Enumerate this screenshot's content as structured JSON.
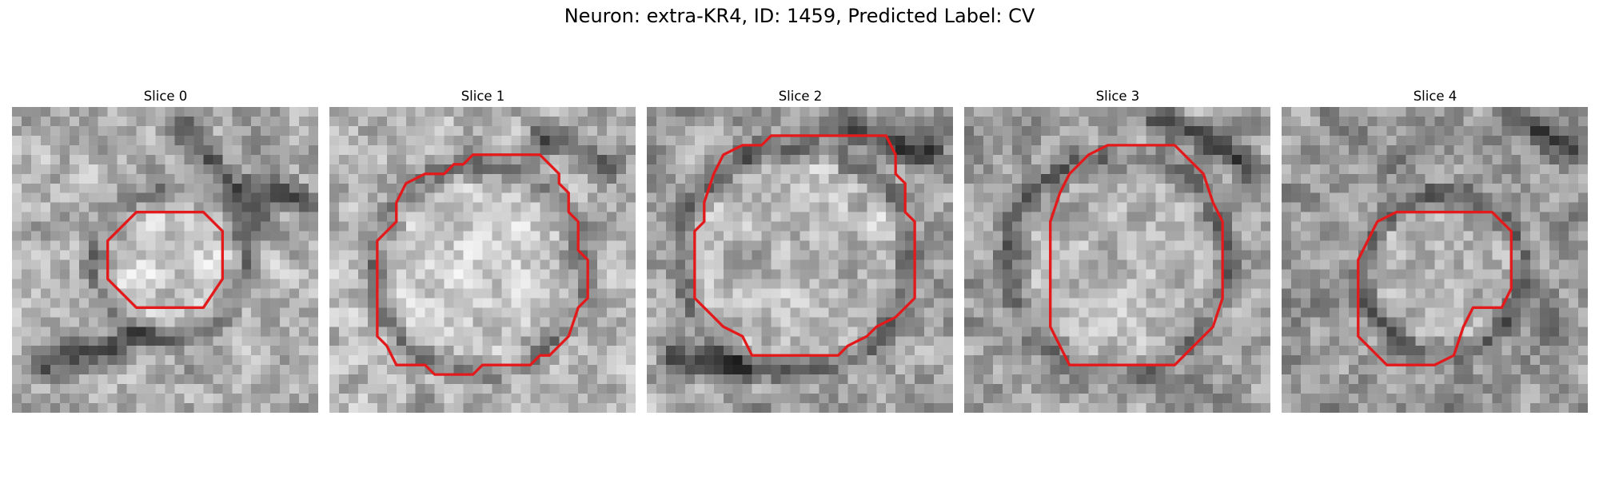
{
  "figure": {
    "title": "Neuron: extra-KR4, ID: 1459, Predicted Label: CV"
  },
  "colors": {
    "contour": "#e31a1c",
    "background": "#ffffff"
  },
  "panels": [
    {
      "title": "Slice 0"
    },
    {
      "title": "Slice 1"
    },
    {
      "title": "Slice 2"
    },
    {
      "title": "Slice 3"
    },
    {
      "title": "Slice 4"
    }
  ]
}
